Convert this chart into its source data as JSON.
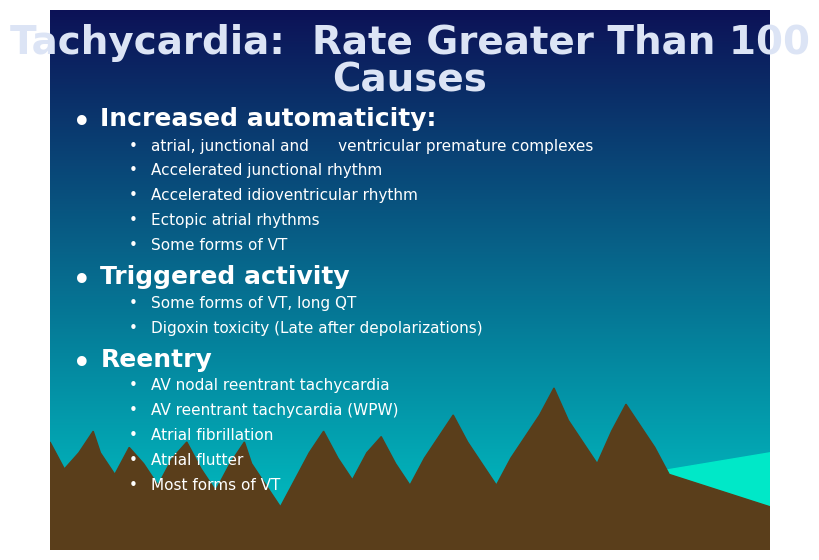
{
  "title_line1": "Tachycardia:  Rate Greater Than 100",
  "title_line2": "Causes",
  "title_fontsize": 28,
  "title_color": "#dce4f5",
  "title_weight": "bold",
  "bg_top_color": "#0d1257",
  "bg_bottom_color": "#00c8c8",
  "bullet1": "Increased automaticity:",
  "bullet1_fontsize": 18,
  "bullet1_color": "#FFFFFF",
  "bullet1_weight": "bold",
  "sub_bullets1": [
    "atrial, junctional and      ventricular premature complexes",
    "Accelerated junctional rhythm",
    "Accelerated idioventricular rhythm",
    "Ectopic atrial rhythms",
    "Some forms of VT"
  ],
  "bullet2": "Triggered activity",
  "bullet2_fontsize": 18,
  "bullet2_color": "#FFFFFF",
  "bullet2_weight": "bold",
  "sub_bullets2": [
    "Some forms of VT, long QT",
    "Digoxin toxicity (Late after depolarizations)"
  ],
  "bullet3": "Reentry",
  "bullet3_fontsize": 18,
  "bullet3_color": "#FFFFFF",
  "bullet3_weight": "bold",
  "sub_bullets3": [
    "AV nodal reentrant tachycardia",
    "AV reentrant tachycardia (WPW)",
    "Atrial fibrillation",
    "Atrial flutter",
    "Most forms of VT"
  ],
  "sub_bullet_fontsize": 11,
  "sub_bullet_color": "#FFFFFF",
  "mountain_color": "#5a3e1b",
  "teal_color": "#00e8c8"
}
